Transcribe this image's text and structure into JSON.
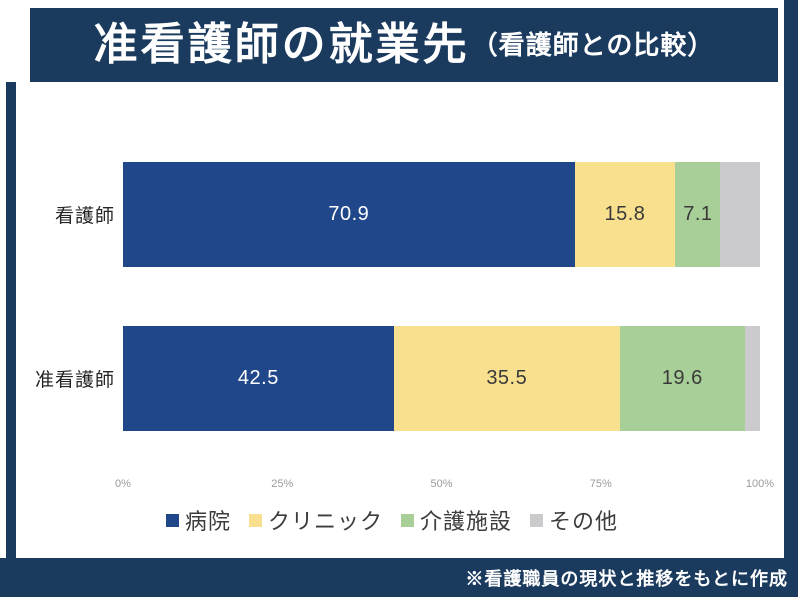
{
  "header": {
    "title": "准看護師の就業先",
    "subtitle": "（看護師との比較）"
  },
  "footer": {
    "note": "※看護職員の現状と推移をもとに作成"
  },
  "colors": {
    "frame_navy": "#1A3A5E",
    "background": "#FFFFFF",
    "tick_text": "#9B9B9B",
    "legend_text": "#3C3C3C"
  },
  "chart_data": {
    "type": "bar",
    "subtype": "horizontal-stacked-100pct",
    "title": "准看護師の就業先（看護師との比較）",
    "categories": [
      "看護師",
      "准看護師"
    ],
    "series": [
      {
        "name": "病院",
        "color": "#1F4789",
        "value_text_color": "#FFFFFF",
        "values": [
          70.9,
          42.5
        ],
        "values_labeled": true
      },
      {
        "name": "クリニック",
        "color": "#F9E08F",
        "value_text_color": "#3A3A3A",
        "values": [
          15.8,
          35.5
        ],
        "values_labeled": true
      },
      {
        "name": "介護施設",
        "color": "#A7CF97",
        "value_text_color": "#3A3A3A",
        "values": [
          7.1,
          19.6
        ],
        "values_labeled": true
      },
      {
        "name": "その他",
        "color": "#CBCBCD",
        "value_text_color": "#3A3A3A",
        "values": [
          6.2,
          2.4
        ],
        "values_labeled": false
      }
    ],
    "x_ticks": [
      "0%",
      "25%",
      "50%",
      "75%",
      "100%"
    ],
    "xlim": [
      0,
      100
    ],
    "unit": "%",
    "grid": false,
    "legend_position": "bottom",
    "note": "その他 segments carry no printed value label; widths are the remainder to 100%"
  }
}
